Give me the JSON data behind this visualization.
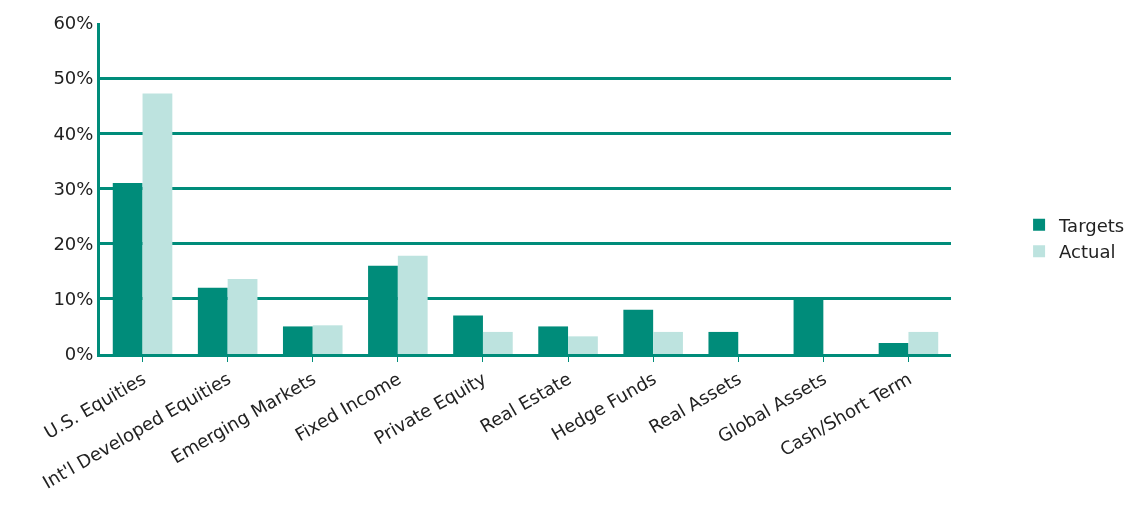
{
  "chart_data": {
    "type": "bar",
    "categories": [
      "U.S. Equities",
      "Int'l Developed Equities",
      "Emerging Markets",
      "Fixed Income",
      "Private Equity",
      "Real Estate",
      "Hedge Funds",
      "Real Assets",
      "Global Assets",
      "Cash/Short Term"
    ],
    "series": [
      {
        "name": "Targets",
        "color": "#008c7a",
        "values": [
          31,
          12,
          5,
          16,
          7,
          5,
          8,
          4,
          10,
          2
        ]
      },
      {
        "name": "Actual",
        "color": "#bde3df",
        "values": [
          47.2,
          13.6,
          5.2,
          17.8,
          4,
          3.2,
          4,
          null,
          null,
          4
        ]
      }
    ],
    "ylim": [
      0,
      60
    ],
    "yticks": [
      {
        "value": 0,
        "label": "0%"
      },
      {
        "value": 10,
        "label": "10%"
      },
      {
        "value": 20,
        "label": "20%"
      },
      {
        "value": 30,
        "label": "30%"
      },
      {
        "value": 40,
        "label": "40%"
      },
      {
        "value": 50,
        "label": "50%"
      },
      {
        "value": 60,
        "label": "60%"
      }
    ],
    "grid": "y",
    "legend": "right"
  }
}
